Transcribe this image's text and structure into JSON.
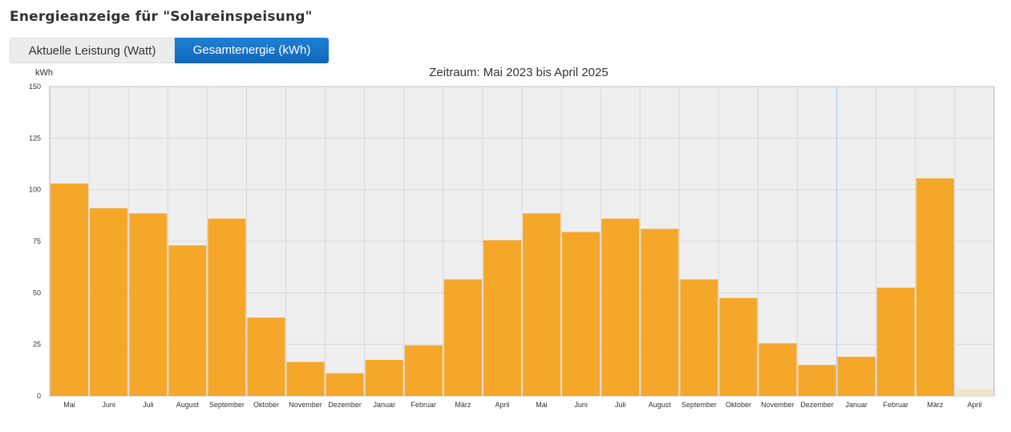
{
  "page_title": "Energieanzeige für \"Solareinspeisung\"",
  "tabs": [
    {
      "label": "Aktuelle Leistung (Watt)",
      "active": false
    },
    {
      "label": "Gesamtenergie (kWh)",
      "active": true
    }
  ],
  "colors": {
    "bar": "#f5a72a",
    "bar_partial": "#f3e4cc",
    "plot_bg": "#efefef",
    "grid": "#d8d8d8",
    "tab_active": "#1570c6",
    "year_divider": "#a8c8ec"
  },
  "chart_data": {
    "type": "bar",
    "title": "Zeitraum: Mai 2023 bis April 2025",
    "ylabel": "kWh",
    "xlabel": "",
    "ylim": [
      0,
      150
    ],
    "yticks": [
      0,
      25,
      50,
      75,
      100,
      125,
      150
    ],
    "grid": true,
    "categories": [
      "Mai",
      "Juni",
      "Juli",
      "August",
      "September",
      "Oktober",
      "November",
      "Dezember",
      "Januar",
      "Februar",
      "März",
      "April",
      "Mai",
      "Juni",
      "Juli",
      "August",
      "September",
      "Oktober",
      "November",
      "Dezember",
      "Januar",
      "Februar",
      "März",
      "April"
    ],
    "values": [
      103,
      91,
      88.5,
      73,
      86,
      38,
      16.5,
      11,
      17.5,
      24.5,
      56.5,
      75.5,
      88.5,
      79.5,
      86,
      81,
      56.5,
      47.5,
      25.5,
      15,
      19,
      52.5,
      105.5,
      3.5
    ],
    "partial_last": true
  }
}
